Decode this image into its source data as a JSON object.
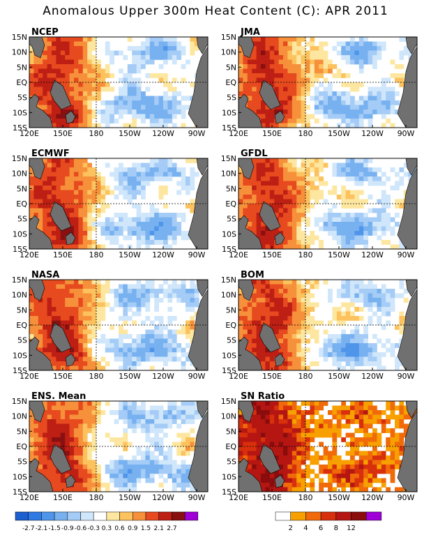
{
  "title": "Anomalous Upper 300m Heat Content (C): APR 2011",
  "chart_data": [
    {
      "type": "heatmap",
      "panel": "NCEP",
      "title": "NCEP",
      "xlim": [
        "120E",
        "80W"
      ],
      "ylim": [
        "15S",
        "15N"
      ]
    },
    {
      "type": "heatmap",
      "panel": "JMA",
      "title": "JMA",
      "xlim": [
        "120E",
        "80W"
      ],
      "ylim": [
        "15S",
        "15N"
      ]
    },
    {
      "type": "heatmap",
      "panel": "ECMWF",
      "title": "ECMWF",
      "xlim": [
        "120E",
        "80W"
      ],
      "ylim": [
        "15S",
        "15N"
      ]
    },
    {
      "type": "heatmap",
      "panel": "GFDL",
      "title": "GFDL",
      "xlim": [
        "120E",
        "80W"
      ],
      "ylim": [
        "15S",
        "15N"
      ]
    },
    {
      "type": "heatmap",
      "panel": "NASA",
      "title": "NASA",
      "xlim": [
        "120E",
        "80W"
      ],
      "ylim": [
        "15S",
        "15N"
      ]
    },
    {
      "type": "heatmap",
      "panel": "BOM",
      "title": "BOM",
      "xlim": [
        "120E",
        "80W"
      ],
      "ylim": [
        "15S",
        "15N"
      ]
    },
    {
      "type": "heatmap",
      "panel": "ENS. Mean",
      "title": "ENS. Mean",
      "xlim": [
        "120E",
        "80W"
      ],
      "ylim": [
        "15S",
        "15N"
      ]
    },
    {
      "type": "heatmap",
      "panel": "SN Ratio",
      "title": "SN Ratio",
      "xlim": [
        "120E",
        "80W"
      ],
      "ylim": [
        "15S",
        "15N"
      ]
    }
  ],
  "axes": {
    "y_ticks": [
      "15N",
      "10N",
      "5N",
      "EQ",
      "5S",
      "10S",
      "15S"
    ],
    "x_ticks": [
      "120E",
      "150E",
      "180",
      "150W",
      "120W",
      "90W"
    ]
  },
  "legend_anomaly": {
    "colors": [
      "#1c5fcf",
      "#2f7ae5",
      "#4f95ea",
      "#78b1f0",
      "#a5ccf6",
      "#cfe6fb",
      "#ffffff",
      "#fde7a0",
      "#fcc25e",
      "#f7903a",
      "#e64a1e",
      "#bd1f14",
      "#881010",
      "#a000d8"
    ],
    "labels": [
      "-2.7",
      "-2.1",
      "-1.5",
      "-0.9",
      "-0.6",
      "-0.3",
      "0.3",
      "0.6",
      "0.9",
      "1.5",
      "2.1",
      "2.7"
    ]
  },
  "legend_sn": {
    "colors": [
      "#ffffff",
      "#f7a000",
      "#f06a0a",
      "#d8300c",
      "#b51612",
      "#8a0c0c",
      "#a000d8"
    ],
    "labels": [
      "2",
      "4",
      "6",
      "8",
      "12"
    ]
  }
}
